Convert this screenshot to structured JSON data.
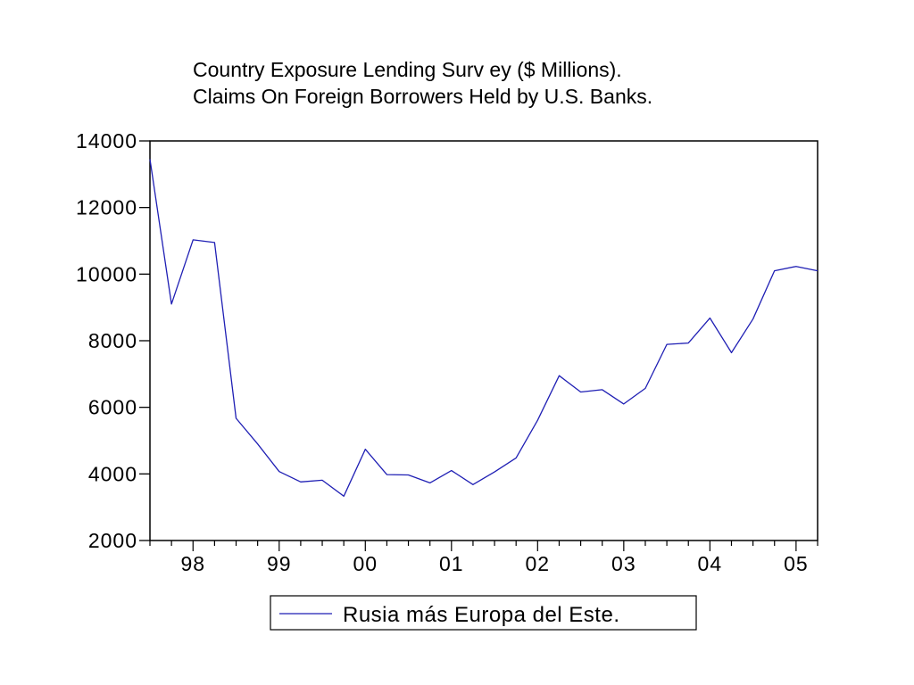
{
  "chart_data": {
    "type": "line",
    "title": "Country  Exposure Lending Surv ey  ($ Millions).",
    "subtitle": "Claims On Foreign Borrowers Held by  U.S. Banks.",
    "xlabel": "",
    "ylabel": "",
    "ylim": [
      2000,
      14000
    ],
    "xlim": [
      1997.5,
      2005.25
    ],
    "y_ticks": [
      14000,
      12000,
      10000,
      8000,
      6000,
      4000,
      2000
    ],
    "y_tick_labels": [
      "14000",
      "12000",
      "10000",
      "8000",
      "6000",
      "4000",
      "2000"
    ],
    "x_ticks": [
      1998,
      1999,
      2000,
      2001,
      2002,
      2003,
      2004,
      2005
    ],
    "x_tick_labels": [
      "98",
      "99",
      "00",
      "01",
      "02",
      "03",
      "04",
      "05"
    ],
    "grid": false,
    "legend_position": "bottom",
    "series": [
      {
        "name": "Rusia más Europa del Este.",
        "color": "#1f1fb4",
        "x": [
          1997.5,
          1997.75,
          1998.0,
          1998.25,
          1998.5,
          1998.75,
          1999.0,
          1999.25,
          1999.5,
          1999.75,
          2000.0,
          2000.25,
          2000.5,
          2000.75,
          2001.0,
          2001.25,
          2001.5,
          2001.75,
          2002.0,
          2002.25,
          2002.5,
          2002.75,
          2003.0,
          2003.25,
          2003.5,
          2003.75,
          2004.0,
          2004.25,
          2004.5,
          2004.75,
          2005.0,
          2005.25
        ],
        "values": [
          13450,
          9100,
          11030,
          10950,
          5670,
          4900,
          4070,
          3760,
          3810,
          3330,
          4740,
          3980,
          3970,
          3730,
          4100,
          3680,
          4060,
          4480,
          5610,
          6950,
          6460,
          6530,
          6100,
          6570,
          7890,
          7930,
          8680,
          7640,
          8650,
          10100,
          10230,
          10100
        ]
      }
    ]
  }
}
